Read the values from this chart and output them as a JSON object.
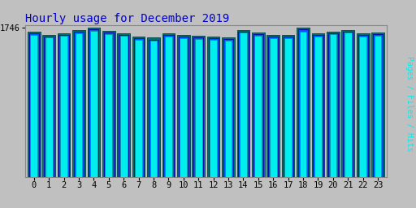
{
  "title": "Hourly usage for December 2019",
  "hours": [
    0,
    1,
    2,
    3,
    4,
    5,
    6,
    7,
    8,
    9,
    10,
    11,
    12,
    13,
    14,
    15,
    16,
    17,
    18,
    19,
    20,
    21,
    22,
    23
  ],
  "pages": [
    1700,
    1660,
    1680,
    1720,
    1746,
    1710,
    1680,
    1640,
    1630,
    1680,
    1660,
    1650,
    1640,
    1630,
    1720,
    1690,
    1660,
    1660,
    1746,
    1680,
    1700,
    1720,
    1680,
    1690
  ],
  "files": [
    1685,
    1645,
    1665,
    1705,
    1730,
    1695,
    1665,
    1625,
    1610,
    1665,
    1645,
    1635,
    1625,
    1615,
    1705,
    1675,
    1645,
    1645,
    1725,
    1665,
    1685,
    1705,
    1665,
    1675
  ],
  "hits": [
    1665,
    1630,
    1650,
    1685,
    1710,
    1675,
    1650,
    1610,
    1595,
    1645,
    1628,
    1618,
    1608,
    1598,
    1688,
    1658,
    1628,
    1628,
    1705,
    1648,
    1668,
    1688,
    1648,
    1658
  ],
  "pages_color": "#007070",
  "files_color": "#0055ff",
  "hits_color": "#00eeee",
  "bg_color": "#c0c0c0",
  "plot_bg_color": "#c0c0c0",
  "title_color": "#0000cc",
  "ytick_label": "1746",
  "ylim_min": 0,
  "ylim_max": 1780,
  "xlim_min": -0.6,
  "xlim_max": 23.6,
  "bar_width": 0.85,
  "title_fontsize": 10,
  "tick_fontsize": 7.5
}
